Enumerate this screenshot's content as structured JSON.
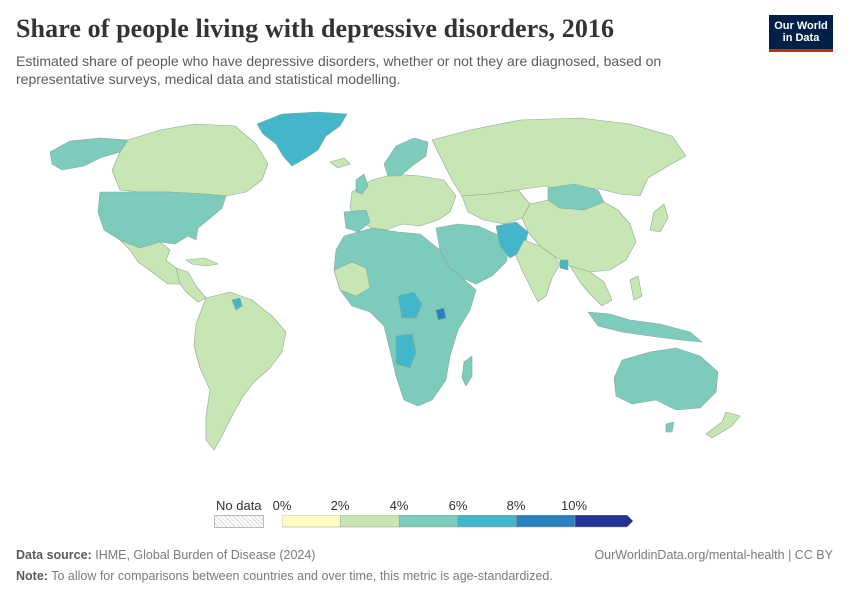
{
  "header": {
    "title": "Share of people living with depressive disorders, 2016",
    "subtitle": "Estimated share of people who have depressive disorders, whether or not they are diagnosed, based on representative surveys, medical data and statistical modelling."
  },
  "logo": {
    "line1": "Our World",
    "line2": "in Data",
    "bg": "#002147",
    "accent": "#ce261e"
  },
  "legend": {
    "no_data_label": "No data",
    "ticks": [
      "0%",
      "2%",
      "4%",
      "6%",
      "8%",
      "10%"
    ],
    "bins": [
      {
        "from": 0,
        "to": 2,
        "color": "#fefdc4"
      },
      {
        "from": 2,
        "to": 4,
        "color": "#c8e6b4"
      },
      {
        "from": 4,
        "to": 6,
        "color": "#7ccbbc"
      },
      {
        "from": 6,
        "to": 8,
        "color": "#43b6c9"
      },
      {
        "from": 8,
        "to": 10,
        "color": "#2a82bc"
      },
      {
        "from": 10,
        "to": 12,
        "color": "#253494"
      }
    ]
  },
  "map_colors": {
    "ocean": "#ffffff",
    "bin_2_4": "#c8e6b4",
    "bin_4_6": "#7ccbbc",
    "bin_6_8": "#43b6c9",
    "bin_8_10": "#2a82bc",
    "border": "#8aa89a"
  },
  "footer": {
    "source_label": "Data source:",
    "source_text": "IHME, Global Burden of Disease (2024)",
    "url_text": "OurWorldinData.org/mental-health | CC BY",
    "note_label": "Note:",
    "note_text": "To allow for comparisons between countries and over time, this metric is age-standardized."
  }
}
